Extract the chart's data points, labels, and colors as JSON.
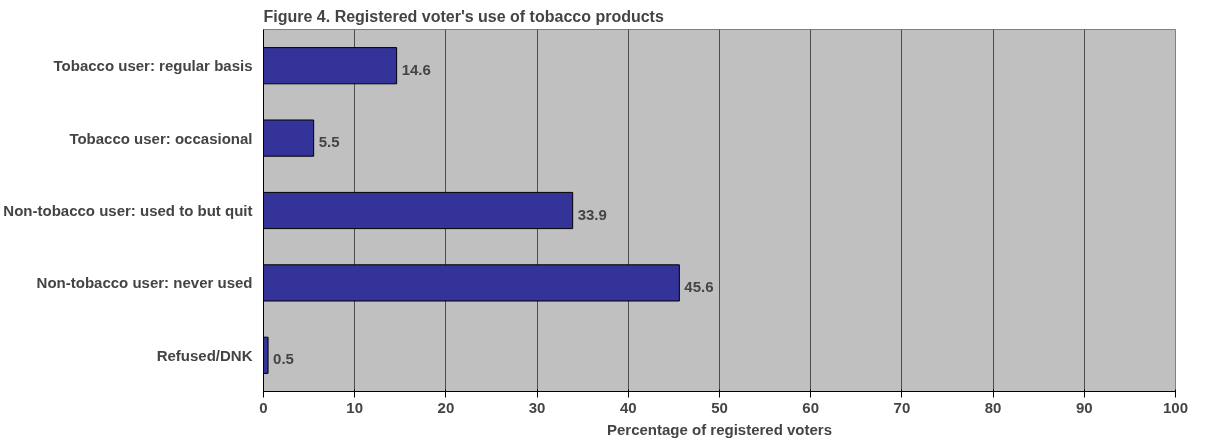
{
  "chart_data": {
    "type": "bar",
    "orientation": "horizontal",
    "title": "Figure 4. Registered voter's use of tobacco products",
    "xlabel": "Percentage of registered voters",
    "categories": [
      "Tobacco user: regular basis",
      "Tobacco user: occasional",
      "Non-tobacco user: used to but quit",
      "Non-tobacco user: never used",
      "Refused/DNK"
    ],
    "values": [
      14.6,
      5.5,
      33.9,
      45.6,
      0.5
    ],
    "color": "#333399",
    "xlim": [
      0,
      100
    ],
    "xticks": [
      0,
      10,
      20,
      30,
      40,
      50,
      60,
      70,
      80,
      90,
      100
    ],
    "grid": "x",
    "data_labels": true
  }
}
